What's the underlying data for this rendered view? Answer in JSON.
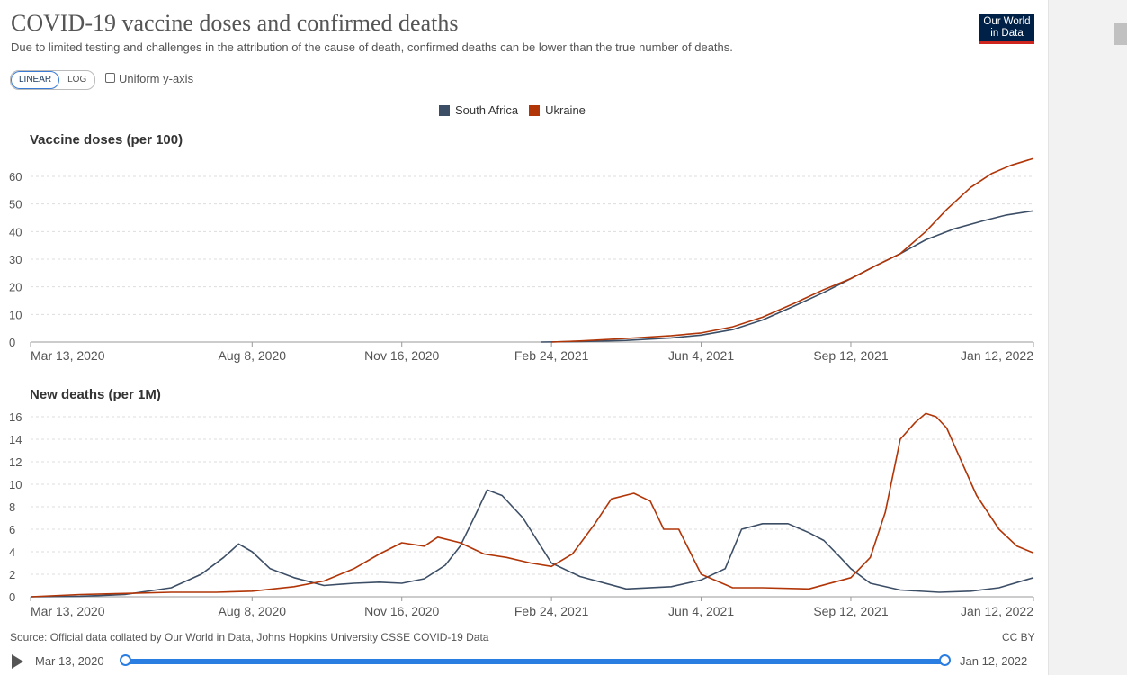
{
  "header": {
    "title": "COVID-19 vaccine doses and confirmed deaths",
    "subtitle": "Due to limited testing and challenges in the attribution of the cause of death, confirmed deaths can be lower than the true number of deaths.",
    "logo_line1": "Our World",
    "logo_line2": "in Data"
  },
  "controls": {
    "linear_label": "LINEAR",
    "log_label": "LOG",
    "uniform_label": "Uniform y-axis",
    "scale_selected": "LINEAR"
  },
  "colors": {
    "south_africa": "#3c4e66",
    "ukraine": "#b13507",
    "grid": "#dddddd",
    "axis": "#999999",
    "timeline": "#2a7de1"
  },
  "footer": {
    "source": "Source: Official data collated by Our World in Data, Johns Hopkins University CSSE COVID-19 Data",
    "license": "CC BY"
  },
  "timeline": {
    "start_label": "Mar 13, 2020",
    "end_label": "Jan 12, 2022"
  },
  "chart_data": [
    {
      "type": "line",
      "title": "Vaccine doses (per 100)",
      "ylim": [
        0,
        60
      ],
      "yticks": [
        0,
        10,
        20,
        30,
        40,
        50,
        60
      ],
      "xticks": [
        "Mar 13, 2020",
        "Aug 8, 2020",
        "Nov 16, 2020",
        "Feb 24, 2021",
        "Jun 4, 2021",
        "Sep 12, 2021",
        "Jan 12, 2022"
      ],
      "grid": true,
      "legend": "top-center",
      "series": [
        {
          "name": "South Africa",
          "x": [
            "2021-02-17",
            "2021-03-15",
            "2021-04-15",
            "2021-05-15",
            "2021-06-04",
            "2021-06-25",
            "2021-07-15",
            "2021-08-05",
            "2021-08-25",
            "2021-09-12",
            "2021-09-30",
            "2021-10-15",
            "2021-11-01",
            "2021-11-20",
            "2021-12-10",
            "2021-12-25",
            "2022-01-12"
          ],
          "y": [
            0,
            0.2,
            0.6,
            1.5,
            2.5,
            4.5,
            8,
            13,
            18,
            23,
            28,
            32,
            37,
            41,
            44,
            46,
            47.5
          ]
        },
        {
          "name": "Ukraine",
          "x": [
            "2021-02-24",
            "2021-03-15",
            "2021-04-15",
            "2021-05-15",
            "2021-06-04",
            "2021-06-25",
            "2021-07-15",
            "2021-08-05",
            "2021-08-25",
            "2021-09-12",
            "2021-09-30",
            "2021-10-15",
            "2021-11-01",
            "2021-11-15",
            "2021-12-01",
            "2021-12-15",
            "2021-12-28",
            "2022-01-12"
          ],
          "y": [
            0,
            0.4,
            1.3,
            2.3,
            3.3,
            5.5,
            9,
            14,
            19,
            23,
            28,
            32,
            40,
            48,
            56,
            61,
            64,
            66.5
          ]
        }
      ]
    },
    {
      "type": "line",
      "title": "New deaths (per 1M)",
      "ylim": [
        0,
        16
      ],
      "yticks": [
        0,
        2,
        4,
        6,
        8,
        10,
        12,
        14,
        16
      ],
      "xticks": [
        "Mar 13, 2020",
        "Aug 8, 2020",
        "Nov 16, 2020",
        "Feb 24, 2021",
        "Jun 4, 2021",
        "Sep 12, 2021",
        "Jan 12, 2022"
      ],
      "grid": true,
      "series": [
        {
          "name": "South Africa",
          "x": [
            "2020-03-13",
            "2020-04-15",
            "2020-05-15",
            "2020-06-15",
            "2020-07-05",
            "2020-07-20",
            "2020-07-30",
            "2020-08-08",
            "2020-08-20",
            "2020-09-05",
            "2020-09-25",
            "2020-10-15",
            "2020-11-01",
            "2020-11-16",
            "2020-12-01",
            "2020-12-15",
            "2020-12-25",
            "2021-01-05",
            "2021-01-12",
            "2021-01-22",
            "2021-02-05",
            "2021-02-24",
            "2021-03-15",
            "2021-04-15",
            "2021-05-15",
            "2021-06-04",
            "2021-06-20",
            "2021-07-01",
            "2021-07-15",
            "2021-08-01",
            "2021-08-15",
            "2021-08-25",
            "2021-09-05",
            "2021-09-12",
            "2021-09-25",
            "2021-10-15",
            "2021-11-10",
            "2021-12-01",
            "2021-12-20",
            "2022-01-12"
          ],
          "y": [
            0,
            0.05,
            0.2,
            0.8,
            2,
            3.5,
            4.7,
            4,
            2.5,
            1.7,
            1,
            1.2,
            1.3,
            1.2,
            1.6,
            2.8,
            4.5,
            7.5,
            9.5,
            9,
            7,
            3,
            1.8,
            0.7,
            0.9,
            1.5,
            2.5,
            6,
            6.5,
            6.5,
            5.7,
            5,
            3.5,
            2.5,
            1.2,
            0.6,
            0.4,
            0.5,
            0.8,
            1.7
          ]
        },
        {
          "name": "Ukraine",
          "x": [
            "2020-03-13",
            "2020-04-15",
            "2020-05-15",
            "2020-06-15",
            "2020-07-15",
            "2020-08-08",
            "2020-09-05",
            "2020-09-25",
            "2020-10-15",
            "2020-11-01",
            "2020-11-16",
            "2020-12-01",
            "2020-12-10",
            "2020-12-25",
            "2021-01-10",
            "2021-01-25",
            "2021-02-10",
            "2021-02-24",
            "2021-03-10",
            "2021-03-25",
            "2021-04-05",
            "2021-04-20",
            "2021-05-01",
            "2021-05-10",
            "2021-05-20",
            "2021-06-04",
            "2021-06-25",
            "2021-07-15",
            "2021-08-15",
            "2021-09-12",
            "2021-09-25",
            "2021-10-05",
            "2021-10-15",
            "2021-10-25",
            "2021-11-01",
            "2021-11-08",
            "2021-11-15",
            "2021-11-25",
            "2021-12-05",
            "2021-12-20",
            "2022-01-01",
            "2022-01-12"
          ],
          "y": [
            0,
            0.2,
            0.3,
            0.4,
            0.4,
            0.5,
            0.9,
            1.4,
            2.5,
            3.8,
            4.8,
            4.5,
            5.3,
            4.8,
            3.8,
            3.5,
            3,
            2.7,
            3.8,
            6.5,
            8.7,
            9.2,
            8.5,
            6,
            6,
            2,
            0.8,
            0.8,
            0.7,
            1.7,
            3.5,
            7.5,
            14,
            15.5,
            16.3,
            16,
            15,
            12,
            9,
            6,
            4.5,
            3.9
          ]
        }
      ]
    }
  ]
}
